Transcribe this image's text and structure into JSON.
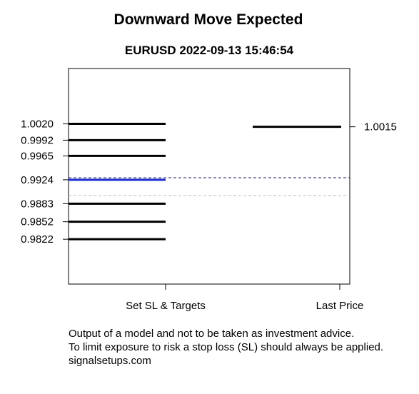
{
  "chart_data": {
    "type": "line",
    "title": "Downward Move Expected",
    "subtitle": "EURUSD 2022-09-13 15:46:54",
    "categories": [
      "Set SL & Targets",
      "Last Price"
    ],
    "ylim": [
      0.9745,
      1.0115
    ],
    "grid": false,
    "left_levels": [
      {
        "label": "1.0020",
        "value": 1.002,
        "color": "#000000"
      },
      {
        "label": "0.9992",
        "value": 0.9992,
        "color": "#000000"
      },
      {
        "label": "0.9965",
        "value": 0.9965,
        "color": "#000000"
      },
      {
        "label": "0.9924",
        "value": 0.9924,
        "color": "#1f2ccc"
      },
      {
        "label": "0.9883",
        "value": 0.9883,
        "color": "#000000"
      },
      {
        "label": "0.9852",
        "value": 0.9852,
        "color": "#000000"
      },
      {
        "label": "0.9822",
        "value": 0.9822,
        "color": "#000000"
      }
    ],
    "last_price": {
      "label": "1.0015",
      "value": 1.0015,
      "color": "#000000"
    },
    "reference_lines": [
      {
        "value": 0.99275,
        "color": "#1c1c6e",
        "style": "dashed"
      },
      {
        "value": 0.9897,
        "color": "#bdbdbd",
        "style": "dashed"
      }
    ]
  },
  "footer": {
    "line1": "Output of a model and not to be taken as investment advice.",
    "line2": "To limit exposure to risk a stop loss (SL) should always be applied.",
    "line3": "signalsetups.com"
  }
}
